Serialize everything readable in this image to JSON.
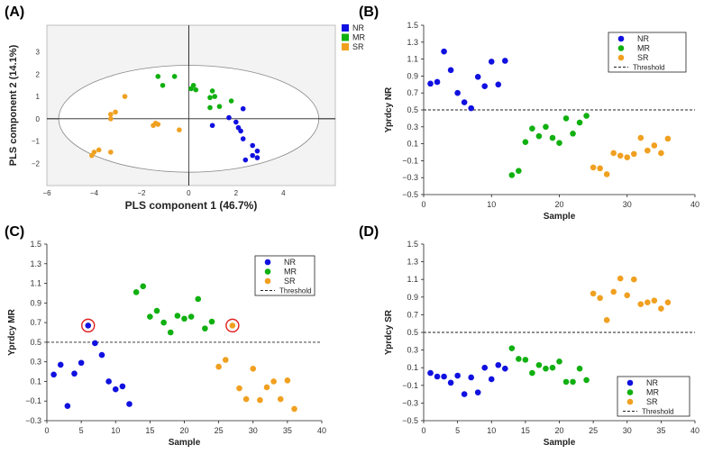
{
  "chart_data": [
    {
      "panel": "(A)",
      "type": "scatter",
      "title": "",
      "xlabel": "PLS component 1 (46.7%)",
      "ylabel": "PLS component 2 (14.1%)",
      "xlim": [
        -6,
        6.2
      ],
      "ylim": [
        -3,
        4.2
      ],
      "xticks": [
        -6,
        -4,
        -2,
        0,
        2,
        4
      ],
      "yticks": [
        -2,
        -1,
        0,
        1,
        2,
        3
      ],
      "ellipse": {
        "cx": 0,
        "cy": 0,
        "rx": 5.5,
        "ry": 2.4
      },
      "legend_position": "top-right",
      "series": [
        {
          "name": "NR",
          "color": "#1010e0",
          "points": [
            [
              1.0,
              -0.3
            ],
            [
              1.7,
              0.05
            ],
            [
              2.3,
              0.45
            ],
            [
              2.0,
              -0.15
            ],
            [
              2.1,
              -0.4
            ],
            [
              2.2,
              -0.55
            ],
            [
              2.3,
              -0.9
            ],
            [
              2.7,
              -1.2
            ],
            [
              2.9,
              -1.45
            ],
            [
              2.7,
              -1.65
            ],
            [
              2.9,
              -1.75
            ],
            [
              2.4,
              -1.85
            ]
          ]
        },
        {
          "name": "MR",
          "color": "#10b010",
          "points": [
            [
              -1.3,
              1.9
            ],
            [
              -0.6,
              1.9
            ],
            [
              -1.1,
              1.5
            ],
            [
              0.2,
              1.5
            ],
            [
              0.3,
              1.3
            ],
            [
              0.1,
              1.35
            ],
            [
              1.0,
              1.25
            ],
            [
              1.1,
              1.0
            ],
            [
              0.9,
              0.95
            ],
            [
              1.8,
              0.8
            ],
            [
              1.3,
              0.55
            ],
            [
              0.9,
              0.5
            ]
          ]
        },
        {
          "name": "SR",
          "color": "#f0a020",
          "points": [
            [
              -2.7,
              1.0
            ],
            [
              -3.3,
              0.2
            ],
            [
              -3.1,
              0.3
            ],
            [
              -3.3,
              0.0
            ],
            [
              -1.5,
              -0.3
            ],
            [
              -1.4,
              -0.2
            ],
            [
              -1.3,
              -0.25
            ],
            [
              -0.4,
              -0.5
            ],
            [
              -3.3,
              -1.5
            ],
            [
              -4.0,
              -1.5
            ],
            [
              -4.1,
              -1.65
            ],
            [
              -3.8,
              -1.4
            ]
          ]
        }
      ]
    },
    {
      "panel": "(B)",
      "type": "scatter",
      "title": "",
      "xlabel": "Sample",
      "ylabel": "Yprdcy NR",
      "xlim": [
        0,
        40
      ],
      "ylim": [
        -0.5,
        1.5
      ],
      "xticks": [
        0,
        10,
        20,
        30,
        40
      ],
      "yticks": [
        -0.5,
        -0.3,
        -0.1,
        0.1,
        0.3,
        0.5,
        0.7,
        0.9,
        1.1,
        1.3,
        1.5
      ],
      "threshold": 0.5,
      "legend_position": "top-right",
      "series": [
        {
          "name": "NR",
          "color": "#1010e0",
          "x": [
            1,
            2,
            3,
            4,
            5,
            6,
            7,
            8,
            9,
            10,
            11,
            12
          ],
          "values": [
            0.81,
            0.83,
            1.19,
            0.97,
            0.7,
            0.59,
            0.52,
            0.89,
            0.78,
            1.07,
            0.8,
            1.08
          ]
        },
        {
          "name": "MR",
          "color": "#10b010",
          "x": [
            13,
            14,
            15,
            16,
            17,
            18,
            19,
            20,
            21,
            22,
            23,
            24
          ],
          "values": [
            -0.27,
            -0.22,
            0.12,
            0.28,
            0.19,
            0.3,
            0.17,
            0.11,
            0.4,
            0.22,
            0.35,
            0.43
          ]
        },
        {
          "name": "SR",
          "color": "#f0a020",
          "x": [
            25,
            26,
            27,
            28,
            29,
            30,
            31,
            32,
            33,
            34,
            35,
            36
          ],
          "values": [
            -0.18,
            -0.19,
            -0.26,
            -0.01,
            -0.04,
            -0.06,
            -0.02,
            0.17,
            0.02,
            0.08,
            -0.01,
            0.16
          ]
        }
      ]
    },
    {
      "panel": "(C)",
      "type": "scatter",
      "title": "",
      "xlabel": "Sample",
      "ylabel": "Yprdcy MR",
      "xlim": [
        0,
        40
      ],
      "ylim": [
        -0.3,
        1.5
      ],
      "xticks": [
        0,
        5,
        10,
        15,
        20,
        25,
        30,
        35,
        40
      ],
      "yticks": [
        -0.3,
        -0.1,
        0.1,
        0.3,
        0.5,
        0.7,
        0.9,
        1.1,
        1.3,
        1.5
      ],
      "threshold": 0.5,
      "legend_position": "top-right",
      "highlighted": [
        [
          6,
          0.67
        ],
        [
          27,
          0.67
        ]
      ],
      "series": [
        {
          "name": "NR",
          "color": "#1010e0",
          "x": [
            1,
            2,
            3,
            4,
            5,
            6,
            7,
            8,
            9,
            10,
            11,
            12
          ],
          "values": [
            0.17,
            0.27,
            -0.15,
            0.18,
            0.29,
            0.67,
            0.49,
            0.37,
            0.1,
            0.02,
            0.05,
            -0.13
          ]
        },
        {
          "name": "MR",
          "color": "#10b010",
          "x": [
            13,
            14,
            15,
            16,
            17,
            18,
            19,
            20,
            21,
            22,
            23,
            24
          ],
          "values": [
            1.01,
            1.07,
            0.76,
            0.82,
            0.7,
            0.6,
            0.77,
            0.74,
            0.76,
            0.94,
            0.64,
            0.71
          ]
        },
        {
          "name": "SR",
          "color": "#f0a020",
          "x": [
            25,
            26,
            27,
            28,
            29,
            30,
            31,
            32,
            33,
            34,
            35,
            36
          ],
          "values": [
            0.25,
            0.32,
            0.67,
            0.03,
            -0.08,
            0.23,
            -0.09,
            0.04,
            0.1,
            -0.08,
            0.11,
            -0.18
          ]
        }
      ]
    },
    {
      "panel": "(D)",
      "type": "scatter",
      "title": "",
      "xlabel": "Sample",
      "ylabel": "Yprdcy SR",
      "xlim": [
        0,
        40
      ],
      "ylim": [
        -0.5,
        1.5
      ],
      "xticks": [
        0,
        5,
        10,
        15,
        20,
        25,
        30,
        35,
        40
      ],
      "yticks": [
        -0.5,
        -0.3,
        -0.1,
        0.1,
        0.3,
        0.5,
        0.7,
        0.9,
        1.1,
        1.3,
        1.5
      ],
      "threshold": 0.5,
      "legend_position": "bottom-right",
      "series": [
        {
          "name": "NR",
          "color": "#1010e0",
          "x": [
            1,
            2,
            3,
            4,
            5,
            6,
            7,
            8,
            9,
            10,
            11,
            12
          ],
          "values": [
            0.04,
            0.0,
            0.0,
            -0.07,
            0.01,
            -0.2,
            -0.01,
            -0.18,
            0.1,
            -0.03,
            0.13,
            0.09
          ]
        },
        {
          "name": "MR",
          "color": "#10b010",
          "x": [
            13,
            14,
            15,
            16,
            17,
            18,
            19,
            20,
            21,
            22,
            23,
            24
          ],
          "values": [
            0.32,
            0.2,
            0.19,
            0.04,
            0.13,
            0.09,
            0.1,
            0.17,
            -0.06,
            -0.06,
            0.09,
            -0.04
          ]
        },
        {
          "name": "SR",
          "color": "#f0a020",
          "x": [
            25,
            26,
            27,
            28,
            29,
            30,
            31,
            32,
            33,
            34,
            35,
            36
          ],
          "values": [
            0.94,
            0.89,
            0.64,
            0.96,
            1.11,
            0.92,
            1.1,
            0.82,
            0.84,
            0.86,
            0.77,
            0.84
          ]
        }
      ]
    }
  ],
  "legend": {
    "threshold_label": "Threshold"
  }
}
